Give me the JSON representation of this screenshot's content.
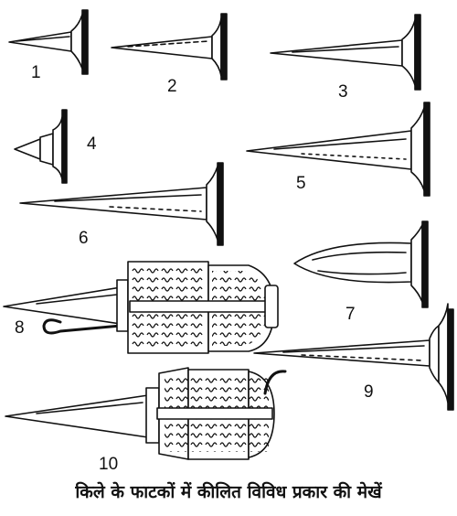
{
  "labels": [
    "1",
    "2",
    "3",
    "4",
    "5",
    "6",
    "7",
    "8",
    "9",
    "10"
  ],
  "caption": "किले के फाटकों में कीलित विविध प्रकार की मेखें",
  "colors": {
    "ink": "#111111",
    "paper": "#ffffff"
  }
}
